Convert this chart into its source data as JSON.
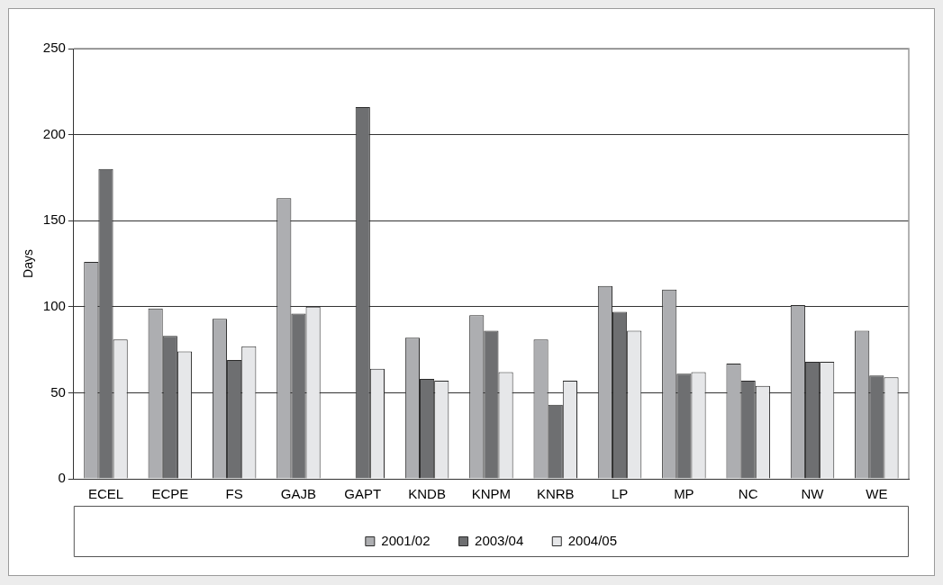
{
  "chart_data": {
    "type": "bar",
    "ylabel": "Days",
    "categories": [
      "ECEL",
      "ECPE",
      "FS",
      "GAJB",
      "GAPT",
      "KNDB",
      "KNPM",
      "KNRB",
      "LP",
      "MP",
      "NC",
      "NW",
      "WE"
    ],
    "series": [
      {
        "name": "2001/02",
        "color": "#adaeb1",
        "values": [
          126,
          99,
          93,
          163,
          null,
          82,
          95,
          81,
          112,
          110,
          67,
          101,
          86
        ]
      },
      {
        "name": "2003/04",
        "color": "#6e6f71",
        "values": [
          180,
          83,
          69,
          96,
          216,
          58,
          86,
          43,
          97,
          61,
          57,
          68,
          60
        ]
      },
      {
        "name": "2004/05",
        "color": "#e6e7e9",
        "values": [
          81,
          74,
          77,
          100,
          64,
          57,
          62,
          57,
          86,
          62,
          54,
          68,
          59
        ]
      }
    ],
    "ylim": [
      0,
      250
    ],
    "yticks": [
      0,
      50,
      100,
      150,
      200,
      250
    ],
    "grid": "y",
    "legend": "bottom"
  }
}
